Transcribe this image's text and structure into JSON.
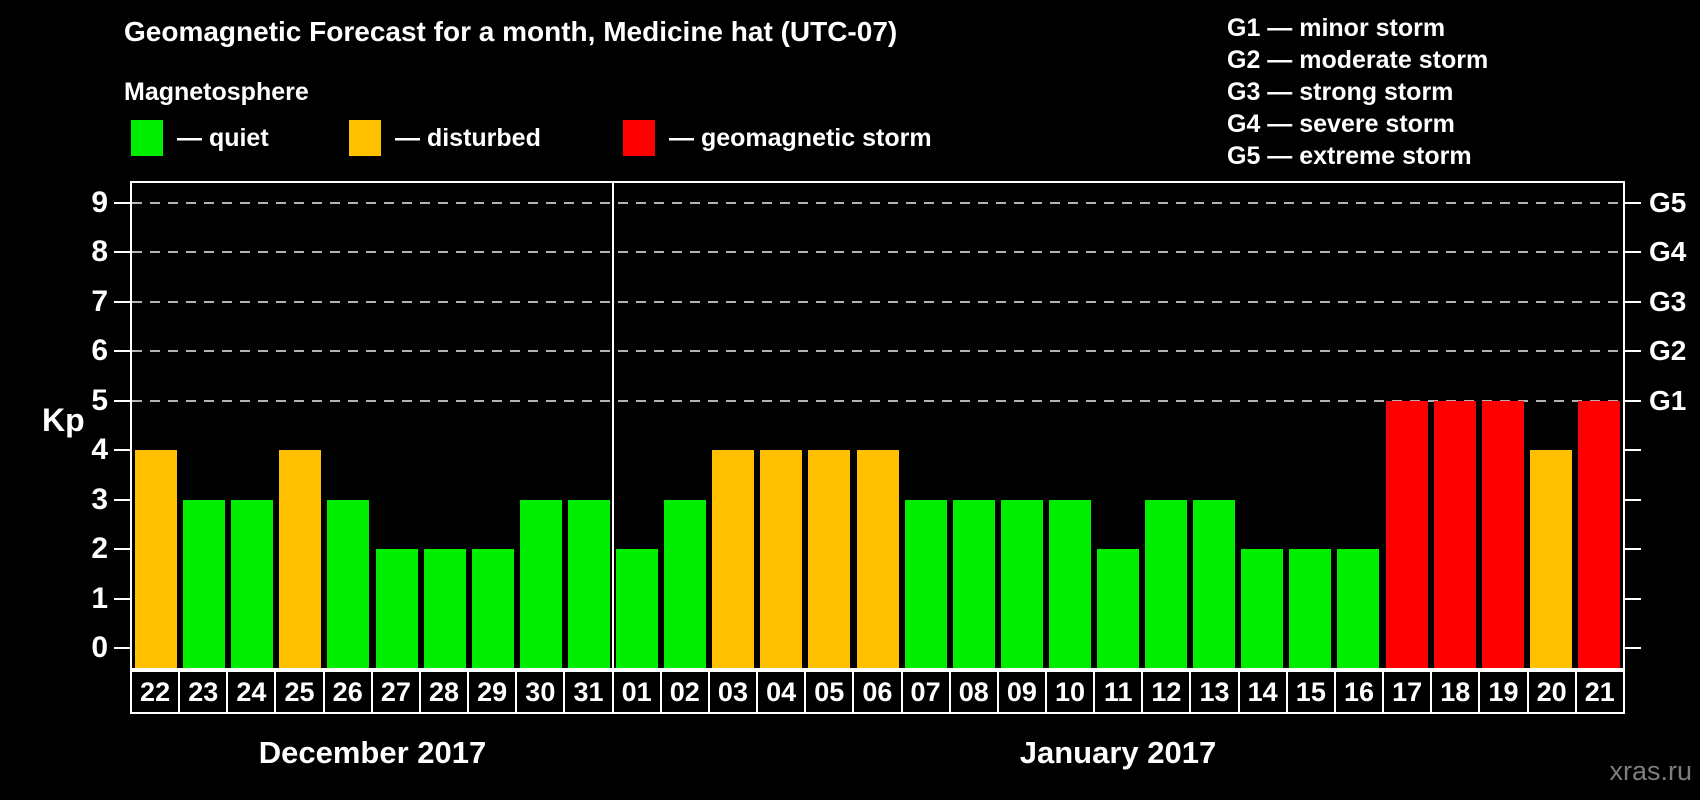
{
  "title": "Geomagnetic Forecast for a month, Medicine hat (UTC-07)",
  "magnetosphere": {
    "heading": "Magnetosphere",
    "items": [
      {
        "key": "quiet",
        "label": "— quiet",
        "color": "#00ee00"
      },
      {
        "key": "disturbed",
        "label": "— disturbed",
        "color": "#ffc000"
      },
      {
        "key": "storm",
        "label": "— geomagnetic storm",
        "color": "#ff0000"
      }
    ]
  },
  "storm_scale": {
    "lines": [
      "G1 — minor storm",
      "G2 — moderate storm",
      "G3 — strong storm",
      "G4 — severe storm",
      "G5 — extreme storm"
    ]
  },
  "axes": {
    "y_label": "Kp",
    "y_ticks": [
      0,
      1,
      2,
      3,
      4,
      5,
      6,
      7,
      8,
      9
    ],
    "right_labels": [
      {
        "code": "G1",
        "kp": 5
      },
      {
        "code": "G2",
        "kp": 6
      },
      {
        "code": "G3",
        "kp": 7
      },
      {
        "code": "G4",
        "kp": 8
      },
      {
        "code": "G5",
        "kp": 9
      }
    ]
  },
  "months": [
    {
      "label": "December 2017"
    },
    {
      "label": "January 2017"
    }
  ],
  "watermark": "xras.ru",
  "chart_data": {
    "type": "bar",
    "title": "Geomagnetic Forecast for a month, Medicine hat (UTC-07)",
    "ylabel": "Kp",
    "ylim": [
      0,
      9
    ],
    "grid": "dashed horizontal lines at Kp 5-9 only",
    "gridlines_at": [
      5,
      6,
      7,
      8,
      9
    ],
    "legend_position": "top",
    "status_colors": {
      "quiet": "#00ee00",
      "disturbed": "#ffc000",
      "storm": "#ff0000"
    },
    "g_scale_map": {
      "G1": 5,
      "G2": 6,
      "G3": 7,
      "G4": 8,
      "G5": 9
    },
    "bars": [
      {
        "month": "December 2017",
        "day": "22",
        "kp": 4,
        "status": "disturbed"
      },
      {
        "month": "December 2017",
        "day": "23",
        "kp": 3,
        "status": "quiet"
      },
      {
        "month": "December 2017",
        "day": "24",
        "kp": 3,
        "status": "quiet"
      },
      {
        "month": "December 2017",
        "day": "25",
        "kp": 4,
        "status": "disturbed"
      },
      {
        "month": "December 2017",
        "day": "26",
        "kp": 3,
        "status": "quiet"
      },
      {
        "month": "December 2017",
        "day": "27",
        "kp": 2,
        "status": "quiet"
      },
      {
        "month": "December 2017",
        "day": "28",
        "kp": 2,
        "status": "quiet"
      },
      {
        "month": "December 2017",
        "day": "29",
        "kp": 2,
        "status": "quiet"
      },
      {
        "month": "December 2017",
        "day": "30",
        "kp": 3,
        "status": "quiet"
      },
      {
        "month": "December 2017",
        "day": "31",
        "kp": 3,
        "status": "quiet"
      },
      {
        "month": "January 2017",
        "day": "01",
        "kp": 2,
        "status": "quiet"
      },
      {
        "month": "January 2017",
        "day": "02",
        "kp": 3,
        "status": "quiet"
      },
      {
        "month": "January 2017",
        "day": "03",
        "kp": 4,
        "status": "disturbed"
      },
      {
        "month": "January 2017",
        "day": "04",
        "kp": 4,
        "status": "disturbed"
      },
      {
        "month": "January 2017",
        "day": "05",
        "kp": 4,
        "status": "disturbed"
      },
      {
        "month": "January 2017",
        "day": "06",
        "kp": 4,
        "status": "disturbed"
      },
      {
        "month": "January 2017",
        "day": "07",
        "kp": 3,
        "status": "quiet"
      },
      {
        "month": "January 2017",
        "day": "08",
        "kp": 3,
        "status": "quiet"
      },
      {
        "month": "January 2017",
        "day": "09",
        "kp": 3,
        "status": "quiet"
      },
      {
        "month": "January 2017",
        "day": "10",
        "kp": 3,
        "status": "quiet"
      },
      {
        "month": "January 2017",
        "day": "11",
        "kp": 2,
        "status": "quiet"
      },
      {
        "month": "January 2017",
        "day": "12",
        "kp": 3,
        "status": "quiet"
      },
      {
        "month": "January 2017",
        "day": "13",
        "kp": 3,
        "status": "quiet"
      },
      {
        "month": "January 2017",
        "day": "14",
        "kp": 2,
        "status": "quiet"
      },
      {
        "month": "January 2017",
        "day": "15",
        "kp": 2,
        "status": "quiet"
      },
      {
        "month": "January 2017",
        "day": "16",
        "kp": 2,
        "status": "quiet"
      },
      {
        "month": "January 2017",
        "day": "17",
        "kp": 5,
        "status": "storm"
      },
      {
        "month": "January 2017",
        "day": "18",
        "kp": 5,
        "status": "storm"
      },
      {
        "month": "January 2017",
        "day": "19",
        "kp": 5,
        "status": "storm"
      },
      {
        "month": "January 2017",
        "day": "20",
        "kp": 4,
        "status": "disturbed"
      },
      {
        "month": "January 2017",
        "day": "21",
        "kp": 5,
        "status": "storm"
      }
    ]
  }
}
